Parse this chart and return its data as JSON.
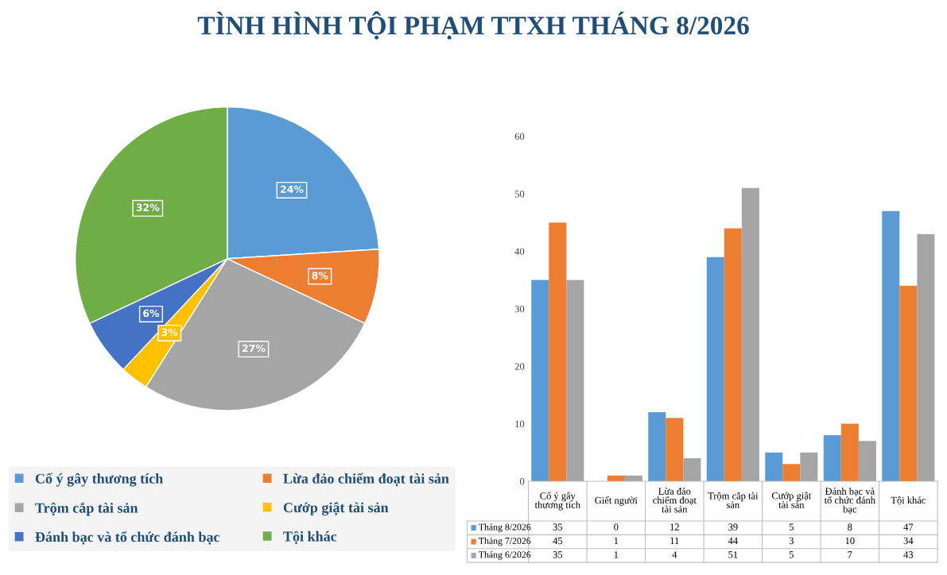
{
  "chart_data": [
    {
      "type": "pie",
      "title": "TÌNH HÌNH TỘI PHẠM TTXH THÁNG 8/2026",
      "categories": [
        "Cố ý gây thương tích",
        "Lừa đảo chiếm đoạt tài sản",
        "Trộm cắp tài sản",
        "Cướp giật tài sản",
        "Đánh bạc và tổ chức đánh bạc",
        "Tội khác"
      ],
      "values": [
        24,
        8,
        27,
        3,
        6,
        32
      ],
      "colors": [
        "#5b9bd5",
        "#ed7d31",
        "#a5a5a5",
        "#ffc000",
        "#4472c4",
        "#70ad47"
      ],
      "value_labels": [
        "24%",
        "8%",
        "27%",
        "3%",
        "6%",
        "32%"
      ],
      "legend": "bottom"
    },
    {
      "type": "bar",
      "categories": [
        "Cố ý gây thương tích",
        "Giết người",
        "Lừa đảo chiếm đoạt tài sản",
        "Trộm cắp tài sản",
        "Cướp giật tài sản",
        "Đánh bạc và tổ chức đánh bạc",
        "Tội khác"
      ],
      "series": [
        {
          "name": "Tháng 8/2026",
          "color": "#5b9bd5",
          "values": [
            35,
            0,
            12,
            39,
            5,
            8,
            47
          ]
        },
        {
          "name": "Tháng 7/2026",
          "color": "#ed7d31",
          "values": [
            45,
            1,
            11,
            44,
            3,
            10,
            34
          ]
        },
        {
          "name": "Tháng 6/2026",
          "color": "#a5a5a5",
          "values": [
            35,
            1,
            4,
            51,
            5,
            7,
            43
          ]
        }
      ],
      "ylim": [
        0,
        60
      ],
      "yticks": [
        0,
        10,
        20,
        30,
        40,
        50,
        60
      ],
      "data_labels": true,
      "legend": "bottom",
      "grid": false
    }
  ]
}
